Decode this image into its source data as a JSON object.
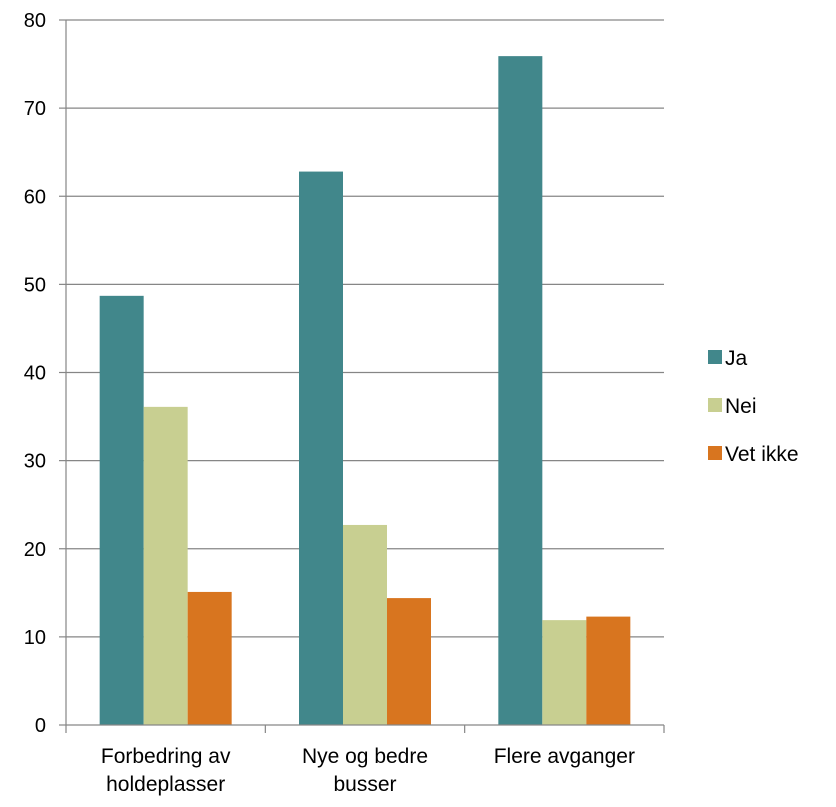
{
  "chart_data": {
    "type": "bar",
    "title": "",
    "xlabel": "",
    "ylabel": "",
    "ylim": [
      0,
      80
    ],
    "yticks": [
      "0",
      "10",
      "20",
      "30",
      "40",
      "50",
      "60",
      "70",
      "80"
    ],
    "grid": true,
    "legend_position": "right",
    "categories": [
      [
        "Forbedring av",
        "holdeplasser"
      ],
      [
        "Nye og bedre",
        "busser"
      ],
      [
        "Flere avganger"
      ]
    ],
    "series": [
      {
        "name": "Ja",
        "color": "#41878b",
        "values": [
          48.7,
          62.8,
          75.9
        ]
      },
      {
        "name": "Nei",
        "color": "#c8cf91",
        "values": [
          36.1,
          22.7,
          11.9
        ]
      },
      {
        "name": "Vet ikke",
        "color": "#d8751f",
        "values": [
          15.1,
          14.4,
          12.3
        ]
      }
    ],
    "gridline_color": "#868686",
    "axis_color": "#868686"
  }
}
